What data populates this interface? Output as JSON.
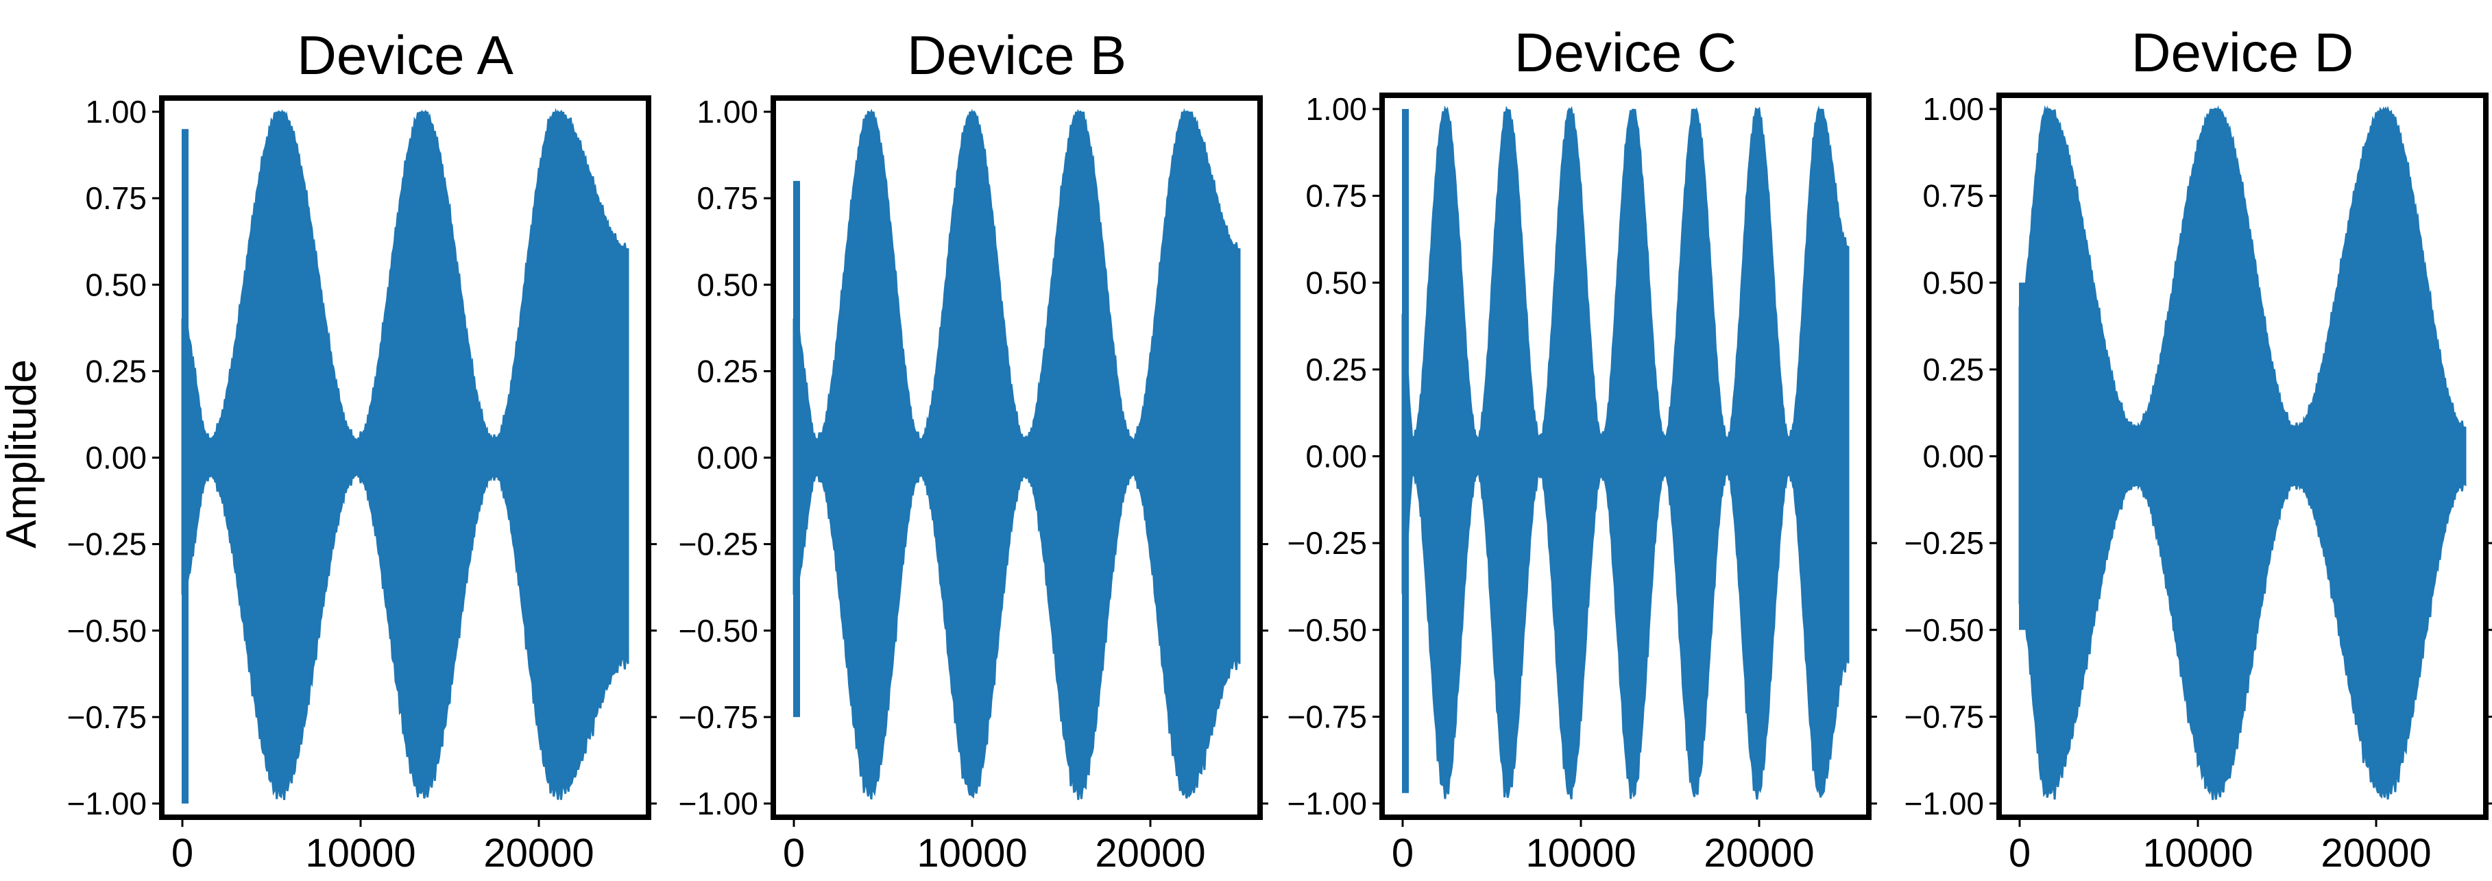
{
  "figure": {
    "ylabel": "Amplitude",
    "signal_color": "#1f77b4"
  },
  "chart_data": [
    {
      "type": "line",
      "title": "Device A",
      "xlabel": "",
      "ylabel": "Amplitude",
      "xlim": [
        0,
        25000
      ],
      "ylim": [
        -1.0,
        1.0
      ],
      "xticks": [
        "0",
        "10000",
        "20000"
      ],
      "yticks": [
        "1.00",
        "0.75",
        "0.50",
        "0.25",
        "0.00",
        "−0.25",
        "−0.50",
        "−0.75",
        "−1.00"
      ],
      "grid": false,
      "series": [
        {
          "envelope_peaks_x": [
            5500,
            13500,
            21000
          ],
          "envelope_nulls_x": [
            1500,
            9800,
            17500
          ],
          "envelope_max": 1.0,
          "envelope_min_at_null": 0.05,
          "end_x": 25000,
          "transient": {
            "x": 0,
            "max": 0.95,
            "min": -1.0
          }
        }
      ]
    },
    {
      "type": "line",
      "title": "Device B",
      "xlabel": "",
      "ylabel": "",
      "xlim": [
        0,
        25000
      ],
      "ylim": [
        -1.0,
        1.0
      ],
      "xticks": [
        "0",
        "10000",
        "20000"
      ],
      "yticks": [
        "1.00",
        "0.75",
        "0.50",
        "0.25",
        "0.00",
        "−0.25",
        "−0.50",
        "−0.75",
        "−1.00"
      ],
      "grid": false,
      "series": [
        {
          "envelope_peaks_x": [
            4300,
            10000,
            16000,
            22000
          ],
          "envelope_nulls_x": [
            1300,
            7100,
            13000,
            19000
          ],
          "envelope_max": 1.0,
          "envelope_min_at_null": 0.05,
          "end_x": 25000,
          "transient": {
            "x": 0,
            "max": 0.8,
            "min": -0.75
          }
        }
      ]
    },
    {
      "type": "line",
      "title": "Device C",
      "xlabel": "",
      "ylabel": "",
      "xlim": [
        0,
        25000
      ],
      "ylim": [
        -1.0,
        1.0
      ],
      "xticks": [
        "0",
        "10000",
        "20000"
      ],
      "yticks": [
        "1.00",
        "0.75",
        "0.50",
        "0.25",
        "0.00",
        "−0.25",
        "−0.50",
        "−0.75",
        "−1.00"
      ],
      "grid": false,
      "series": [
        {
          "envelope_peaks_x": [
            2400,
            5900,
            9400,
            12900,
            16400,
            19900,
            23400
          ],
          "envelope_nulls_x": [
            600,
            4200,
            7700,
            11200,
            14700,
            18200,
            21700
          ],
          "envelope_max": 1.0,
          "envelope_min_at_null": 0.05,
          "end_x": 25000,
          "transient": {
            "x": 0,
            "max": 1.0,
            "min": -0.97
          }
        }
      ]
    },
    {
      "type": "line",
      "title": "Device D",
      "xlabel": "",
      "ylabel": "",
      "xlim": [
        0,
        25000
      ],
      "ylim": [
        -1.0,
        1.0
      ],
      "xticks": [
        "0",
        "10000",
        "20000"
      ],
      "yticks": [
        "1.00",
        "0.75",
        "0.50",
        "0.25",
        "0.00",
        "−0.25",
        "−0.50",
        "−0.75",
        "−1.00"
      ],
      "grid": false,
      "series": [
        {
          "envelope_peaks_x": [
            1500,
            11000,
            20500
          ],
          "envelope_nulls_x": [
            6500,
            15500,
            25000
          ],
          "envelope_max": 1.0,
          "envelope_min_at_null": 0.08,
          "end_x": 25000,
          "transient": {
            "x": 0,
            "max": 0.5,
            "min": -0.5
          }
        }
      ]
    }
  ]
}
